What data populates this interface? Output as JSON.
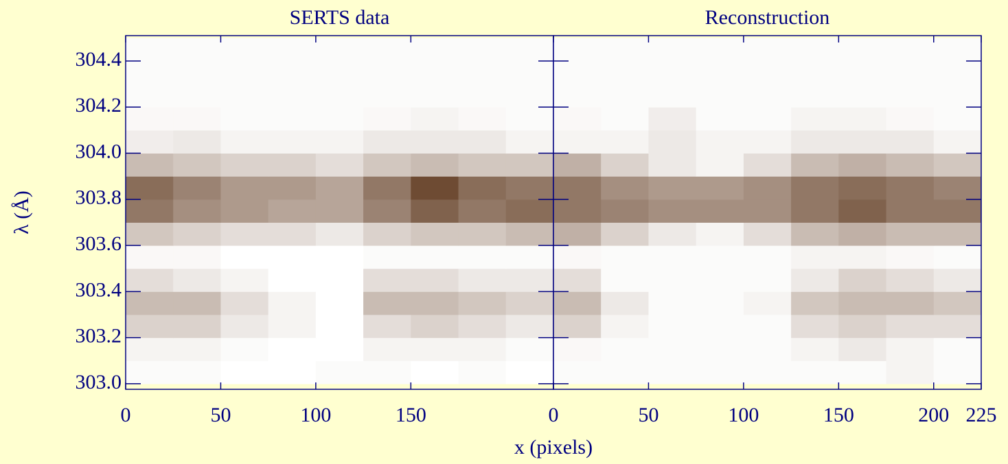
{
  "chart_data": [
    {
      "type": "heatmap",
      "title": "SERTS data",
      "ylabel": "λ (Å)",
      "xlim": [
        0,
        225
      ],
      "xticks": [
        0,
        50,
        100,
        150
      ],
      "ylim": [
        302.976,
        304.51
      ],
      "yticks": [
        {
          "value": 303.0,
          "label": "303.0"
        },
        {
          "value": 303.2,
          "label": "303.2"
        },
        {
          "value": 303.4,
          "label": "303.4"
        },
        {
          "value": 303.6,
          "label": "303.6"
        },
        {
          "value": 303.8,
          "label": "303.8"
        },
        {
          "value": 304.0,
          "label": "304.0"
        },
        {
          "value": 304.2,
          "label": "304.2"
        },
        {
          "value": 304.4,
          "label": "304.4"
        }
      ],
      "colormap": [
        "#ffffff",
        "#4a1e00"
      ],
      "xbins": [
        0,
        25,
        50,
        75,
        100,
        125,
        150,
        175,
        200,
        225
      ],
      "ybins": [
        303.0,
        303.1,
        303.2,
        303.3,
        303.4,
        303.5,
        303.6,
        303.7,
        303.8,
        303.9,
        304.0,
        304.1,
        304.2,
        304.3,
        304.4,
        304.5
      ],
      "values": [
        [
          0.02,
          0.02,
          0,
          0,
          0.02,
          0.02,
          0,
          0.02,
          0
        ],
        [
          0.05,
          0.05,
          0.02,
          0,
          0,
          0.05,
          0.05,
          0.05,
          0.02
        ],
        [
          0.2,
          0.2,
          0.1,
          0.05,
          0,
          0.15,
          0.2,
          0.15,
          0.1
        ],
        [
          0.3,
          0.3,
          0.15,
          0.05,
          0,
          0.3,
          0.3,
          0.25,
          0.2
        ],
        [
          0.15,
          0.1,
          0.05,
          0,
          0,
          0.15,
          0.15,
          0.1,
          0.1
        ],
        [
          0.03,
          0.03,
          0,
          0,
          0,
          0.02,
          0.02,
          0.02,
          0.02
        ],
        [
          0.25,
          0.2,
          0.15,
          0.15,
          0.1,
          0.2,
          0.25,
          0.25,
          0.3
        ],
        [
          0.6,
          0.5,
          0.45,
          0.4,
          0.4,
          0.55,
          0.7,
          0.6,
          0.65
        ],
        [
          0.65,
          0.55,
          0.45,
          0.45,
          0.4,
          0.6,
          0.8,
          0.65,
          0.6
        ],
        [
          0.3,
          0.25,
          0.2,
          0.2,
          0.15,
          0.25,
          0.3,
          0.25,
          0.25
        ],
        [
          0.08,
          0.1,
          0.05,
          0.05,
          0.05,
          0.1,
          0.1,
          0.1,
          0.05
        ],
        [
          0.03,
          0.03,
          0.02,
          0.02,
          0.02,
          0.03,
          0.05,
          0.03,
          0.02
        ],
        [
          0.02,
          0.02,
          0.02,
          0.02,
          0.02,
          0.02,
          0.02,
          0.02,
          0.02
        ],
        [
          0.02,
          0.02,
          0.02,
          0.02,
          0.02,
          0.02,
          0.02,
          0.02,
          0.02
        ],
        [
          0.02,
          0.02,
          0.02,
          0.02,
          0.02,
          0.02,
          0.02,
          0.02,
          0.02
        ]
      ]
    },
    {
      "type": "heatmap",
      "title": "Reconstruction",
      "xlabel": "x (pixels)",
      "xlim": [
        0,
        225
      ],
      "xticks": [
        0,
        50,
        100,
        150,
        200,
        225
      ],
      "ylim": [
        302.976,
        304.51
      ],
      "yticks": [
        303.0,
        303.2,
        303.4,
        303.6,
        303.8,
        304.0,
        304.2,
        304.4
      ],
      "colormap": [
        "#ffffff",
        "#4a1e00"
      ],
      "xbins": [
        0,
        25,
        50,
        75,
        100,
        125,
        150,
        175,
        200,
        225
      ],
      "ybins": [
        303.0,
        303.1,
        303.2,
        303.3,
        303.4,
        303.5,
        303.6,
        303.7,
        303.8,
        303.9,
        304.0,
        304.1,
        304.2,
        304.3,
        304.4,
        304.5
      ],
      "values": [
        [
          0.02,
          0.02,
          0.02,
          0.02,
          0.02,
          0.02,
          0.02,
          0.05,
          0.02
        ],
        [
          0.03,
          0.02,
          0.02,
          0.02,
          0.02,
          0.05,
          0.1,
          0.05,
          0.02
        ],
        [
          0.2,
          0.05,
          0.02,
          0.02,
          0.02,
          0.15,
          0.2,
          0.15,
          0.15
        ],
        [
          0.3,
          0.1,
          0.02,
          0.02,
          0.05,
          0.25,
          0.3,
          0.3,
          0.25
        ],
        [
          0.15,
          0.02,
          0.02,
          0.02,
          0.02,
          0.1,
          0.2,
          0.15,
          0.1
        ],
        [
          0.03,
          0.02,
          0.02,
          0.02,
          0.02,
          0.05,
          0.05,
          0.03,
          0.02
        ],
        [
          0.35,
          0.2,
          0.1,
          0.05,
          0.15,
          0.3,
          0.35,
          0.3,
          0.3
        ],
        [
          0.6,
          0.55,
          0.5,
          0.5,
          0.5,
          0.6,
          0.7,
          0.6,
          0.6
        ],
        [
          0.6,
          0.5,
          0.45,
          0.45,
          0.5,
          0.6,
          0.65,
          0.6,
          0.55
        ],
        [
          0.35,
          0.2,
          0.1,
          0.05,
          0.15,
          0.3,
          0.35,
          0.3,
          0.25
        ],
        [
          0.05,
          0.05,
          0.1,
          0.05,
          0.05,
          0.1,
          0.1,
          0.1,
          0.05
        ],
        [
          0.03,
          0.02,
          0.08,
          0.02,
          0.02,
          0.05,
          0.05,
          0.03,
          0.02
        ],
        [
          0.02,
          0.02,
          0.02,
          0.02,
          0.02,
          0.02,
          0.02,
          0.02,
          0.02
        ],
        [
          0.02,
          0.02,
          0.02,
          0.02,
          0.02,
          0.02,
          0.02,
          0.02,
          0.02
        ],
        [
          0.02,
          0.02,
          0.02,
          0.02,
          0.02,
          0.02,
          0.02,
          0.02,
          0.02
        ]
      ]
    }
  ]
}
